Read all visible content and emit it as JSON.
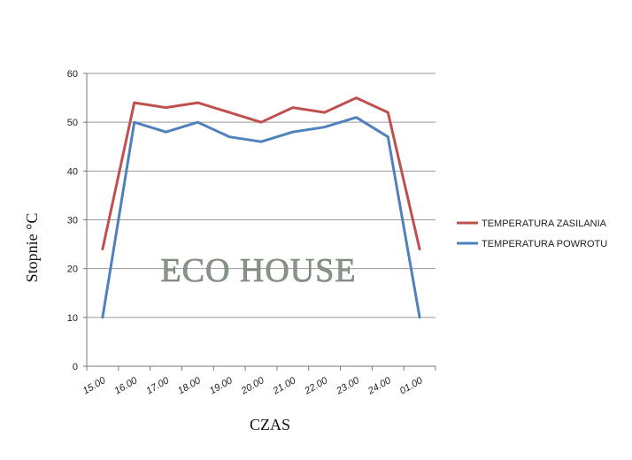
{
  "watermark": "ECO HOUSE",
  "chart_data": {
    "type": "line",
    "title": "",
    "xlabel": "CZAS",
    "ylabel": "Stopnie °C",
    "categories": [
      "15.00",
      "16.00",
      "17.00",
      "18.00",
      "19.00",
      "20.00",
      "21.00",
      "22.00",
      "23.00",
      "24.00",
      "01.00"
    ],
    "ylim": [
      0,
      60
    ],
    "yticks": [
      0,
      10,
      20,
      30,
      40,
      50,
      60
    ],
    "grid": true,
    "legend_position": "right",
    "series": [
      {
        "name": "TEMPERATURA ZASILANIA",
        "color": "#c0504d",
        "values": [
          24,
          54,
          53,
          54,
          52,
          50,
          53,
          52,
          55,
          52,
          24
        ]
      },
      {
        "name": "TEMPERATURA POWROTU",
        "color": "#4f81bd",
        "values": [
          10,
          50,
          48,
          50,
          47,
          46,
          48,
          49,
          51,
          47,
          10
        ]
      }
    ]
  }
}
